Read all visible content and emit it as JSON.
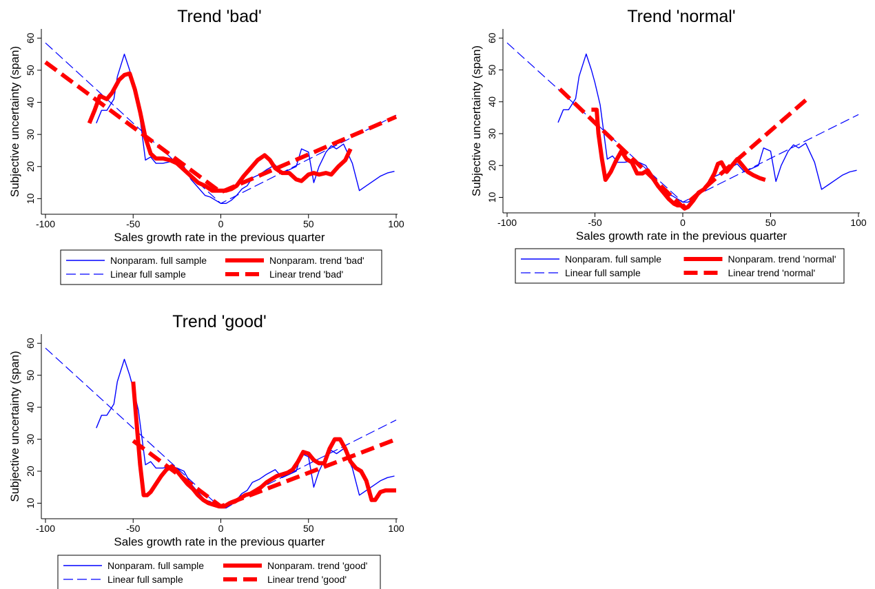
{
  "chart_data": [
    {
      "type": "line",
      "title": "Trend 'bad'",
      "xlabel": "Sales growth rate in the previous quarter",
      "ylabel": "Subjective uncertainty (span)",
      "xlim": [
        -100,
        100
      ],
      "ylim": [
        6,
        62
      ],
      "xticks": [
        -100,
        -50,
        0,
        50,
        100
      ],
      "yticks": [
        10,
        20,
        30,
        40,
        50,
        60
      ],
      "grid": false,
      "legend_position": "bottom",
      "series": [
        {
          "name": "Nonparam. full sample",
          "color": "#0000ff",
          "style": "thin-solid",
          "x": [
            -71,
            -68,
            -65,
            -61,
            -59,
            -55,
            -52,
            -50,
            -47,
            -43,
            -40,
            -37,
            -33,
            -29,
            -25,
            -21,
            -17,
            -13,
            -9,
            -6,
            -3,
            0,
            3,
            6,
            9,
            12,
            15,
            18,
            22,
            26,
            31,
            35,
            39,
            43,
            46,
            50,
            53,
            56,
            60,
            63,
            66,
            70,
            75,
            79,
            83,
            87,
            91,
            95,
            99
          ],
          "y": [
            33.5,
            37.5,
            37.5,
            41,
            48,
            55,
            50,
            46,
            39,
            22,
            23,
            21,
            21,
            21.5,
            21,
            20,
            16,
            13.5,
            11,
            10.5,
            9.5,
            8.5,
            8.5,
            9.5,
            11,
            13,
            14,
            16.5,
            17.5,
            19,
            20.5,
            18,
            19,
            20,
            25.5,
            24.5,
            15,
            20,
            24.5,
            26.5,
            25.5,
            27,
            21,
            12.5,
            14,
            15.5,
            17,
            18,
            18.5
          ]
        },
        {
          "name": "Linear full sample",
          "color": "#0000ff",
          "style": "thin-dash",
          "x": [
            -100,
            0,
            100
          ],
          "y": [
            58.5,
            8.5,
            36
          ]
        },
        {
          "name": "Nonparam. trend 'bad'",
          "color": "#ff0000",
          "style": "thick-solid",
          "x": [
            -75,
            -72,
            -69,
            -65,
            -62,
            -58,
            -55,
            -52,
            -49,
            -46,
            -43,
            -40,
            -37,
            -33,
            -29,
            -25,
            -21,
            -17,
            -13,
            -9,
            -5,
            -1,
            3,
            6,
            9,
            13,
            17,
            21,
            25,
            28,
            31,
            35,
            39,
            43,
            46,
            50,
            53,
            56,
            60,
            63,
            67,
            71,
            74
          ],
          "y": [
            33.5,
            37.5,
            42,
            41,
            43,
            47,
            48.5,
            49,
            44,
            37,
            29,
            24,
            22.5,
            22.5,
            22,
            21,
            19,
            17,
            15,
            14,
            12.5,
            12.5,
            12.5,
            13,
            14,
            17,
            19.5,
            22,
            23.5,
            22,
            19.5,
            18,
            18,
            16,
            15.5,
            17.5,
            18,
            17.5,
            18,
            17.5,
            20,
            22,
            25.5
          ]
        },
        {
          "name": "Linear trend 'bad'",
          "color": "#ff0000",
          "style": "thick-dash",
          "x": [
            -100,
            0,
            100
          ],
          "y": [
            52.5,
            12,
            35.5
          ]
        }
      ]
    },
    {
      "type": "line",
      "title": "Trend 'normal'",
      "xlabel": "Sales growth rate in the previous quarter",
      "ylabel": "Subjective uncertainty (span)",
      "xlim": [
        -100,
        100
      ],
      "ylim": [
        6,
        62
      ],
      "xticks": [
        -100,
        -50,
        0,
        50,
        100
      ],
      "yticks": [
        10,
        20,
        30,
        40,
        50,
        60
      ],
      "grid": false,
      "legend_position": "bottom",
      "series": [
        {
          "name": "Nonparam. full sample",
          "color": "#0000ff",
          "style": "thin-solid",
          "x": [
            -71,
            -68,
            -65,
            -61,
            -59,
            -55,
            -52,
            -50,
            -47,
            -43,
            -40,
            -37,
            -33,
            -29,
            -25,
            -21,
            -17,
            -13,
            -9,
            -6,
            -3,
            0,
            3,
            6,
            9,
            12,
            15,
            18,
            22,
            26,
            31,
            35,
            39,
            43,
            46,
            50,
            53,
            56,
            60,
            63,
            66,
            70,
            75,
            79,
            83,
            87,
            91,
            95,
            99
          ],
          "y": [
            33.5,
            37.5,
            37.5,
            41,
            48,
            55,
            50,
            46,
            39,
            22,
            23,
            21,
            21,
            21.5,
            21,
            20,
            16,
            13.5,
            11,
            10.5,
            9.5,
            8.5,
            8.5,
            9.5,
            11,
            13,
            14,
            16.5,
            17.5,
            19,
            20.5,
            18,
            19,
            20,
            25.5,
            24.5,
            15,
            20,
            24.5,
            26.5,
            25.5,
            27,
            21,
            12.5,
            14,
            15.5,
            17,
            18,
            18.5
          ]
        },
        {
          "name": "Linear full sample",
          "color": "#0000ff",
          "style": "thin-dash",
          "x": [
            -100,
            0,
            100
          ],
          "y": [
            58.5,
            8.5,
            36
          ]
        },
        {
          "name": "Nonparam. trend 'normal'",
          "color": "#ff0000",
          "style": "thick-solid",
          "x": [
            -52,
            -49,
            -48,
            -46,
            -44,
            -41,
            -38,
            -35,
            -32,
            -29,
            -26,
            -23,
            -20,
            -17,
            -14,
            -11,
            -8,
            -5,
            -3,
            -1,
            1,
            3,
            6,
            9,
            12,
            15,
            18,
            20,
            22,
            25,
            28,
            31,
            34,
            37,
            40,
            44,
            47
          ],
          "y": [
            37.5,
            37.5,
            30,
            22,
            15.5,
            18,
            21.5,
            24.5,
            22,
            21,
            17.5,
            17.5,
            18.5,
            16,
            13.5,
            11.5,
            9.5,
            8,
            7.5,
            7.5,
            6.5,
            7,
            9,
            11.5,
            12.5,
            14.5,
            17.5,
            20.5,
            21,
            18,
            20,
            22,
            20,
            18,
            17,
            16,
            15.5
          ]
        },
        {
          "name": "Linear trend 'normal'",
          "color": "#ff0000",
          "style": "thick-dash",
          "x": [
            -70,
            0,
            70
          ],
          "y": [
            44,
            7,
            40.5
          ]
        }
      ]
    },
    {
      "type": "line",
      "title": "Trend 'good'",
      "xlabel": "Sales growth rate in the previous quarter",
      "ylabel": "Subjective uncertainty (span)",
      "xlim": [
        -100,
        100
      ],
      "ylim": [
        6,
        62
      ],
      "xticks": [
        -100,
        -50,
        0,
        50,
        100
      ],
      "yticks": [
        10,
        20,
        30,
        40,
        50,
        60
      ],
      "grid": false,
      "legend_position": "bottom",
      "series": [
        {
          "name": "Nonparam. full sample",
          "color": "#0000ff",
          "style": "thin-solid",
          "x": [
            -71,
            -68,
            -65,
            -61,
            -59,
            -55,
            -52,
            -50,
            -47,
            -43,
            -40,
            -37,
            -33,
            -29,
            -25,
            -21,
            -17,
            -13,
            -9,
            -6,
            -3,
            0,
            3,
            6,
            9,
            12,
            15,
            18,
            22,
            26,
            31,
            35,
            39,
            43,
            46,
            50,
            53,
            56,
            60,
            63,
            66,
            70,
            75,
            79,
            83,
            87,
            91,
            95,
            99
          ],
          "y": [
            33.5,
            37.5,
            37.5,
            41,
            48,
            55,
            50,
            46,
            39,
            22,
            23,
            21,
            21,
            21.5,
            21,
            20,
            16,
            13.5,
            11,
            10.5,
            9.5,
            8.5,
            8.5,
            9.5,
            11,
            13,
            14,
            16.5,
            17.5,
            19,
            20.5,
            18,
            19,
            20,
            25.5,
            24.5,
            15,
            20,
            24.5,
            26.5,
            25.5,
            27,
            21,
            12.5,
            14,
            15.5,
            17,
            18,
            18.5
          ]
        },
        {
          "name": "Linear full sample",
          "color": "#0000ff",
          "style": "thin-dash",
          "x": [
            -100,
            0,
            100
          ],
          "y": [
            58.5,
            8.5,
            36
          ]
        },
        {
          "name": "Nonparam. trend 'good'",
          "color": "#ff0000",
          "style": "thick-solid",
          "x": [
            -50,
            -48,
            -46,
            -44,
            -42,
            -40,
            -37,
            -34,
            -31,
            -28,
            -25,
            -22,
            -19,
            -16,
            -13,
            -10,
            -7,
            -4,
            -1,
            2,
            5,
            8,
            11,
            14,
            17,
            20,
            23,
            26,
            29,
            32,
            35,
            38,
            41,
            44,
            47,
            50,
            53,
            56,
            59,
            62,
            65,
            68,
            71,
            74,
            77,
            80,
            83,
            86,
            88,
            91,
            94,
            97,
            100
          ],
          "y": [
            48,
            35,
            22,
            12.5,
            12.5,
            13.5,
            16,
            18.5,
            20.5,
            21.5,
            20,
            18,
            16,
            14.5,
            12.5,
            11,
            10,
            9.5,
            9,
            9,
            10,
            10.5,
            11.5,
            12.5,
            13,
            14,
            15,
            16.5,
            17.5,
            18.5,
            19,
            19.5,
            20.5,
            23,
            26,
            25.5,
            23.5,
            22.5,
            22.5,
            27,
            30,
            30,
            27,
            23,
            21,
            20,
            17,
            11,
            11,
            13.5,
            14,
            14,
            14
          ]
        },
        {
          "name": "Linear trend 'good'",
          "color": "#ff0000",
          "style": "thick-dash",
          "x": [
            -50,
            0,
            100
          ],
          "y": [
            29.5,
            9,
            30
          ]
        }
      ]
    }
  ]
}
